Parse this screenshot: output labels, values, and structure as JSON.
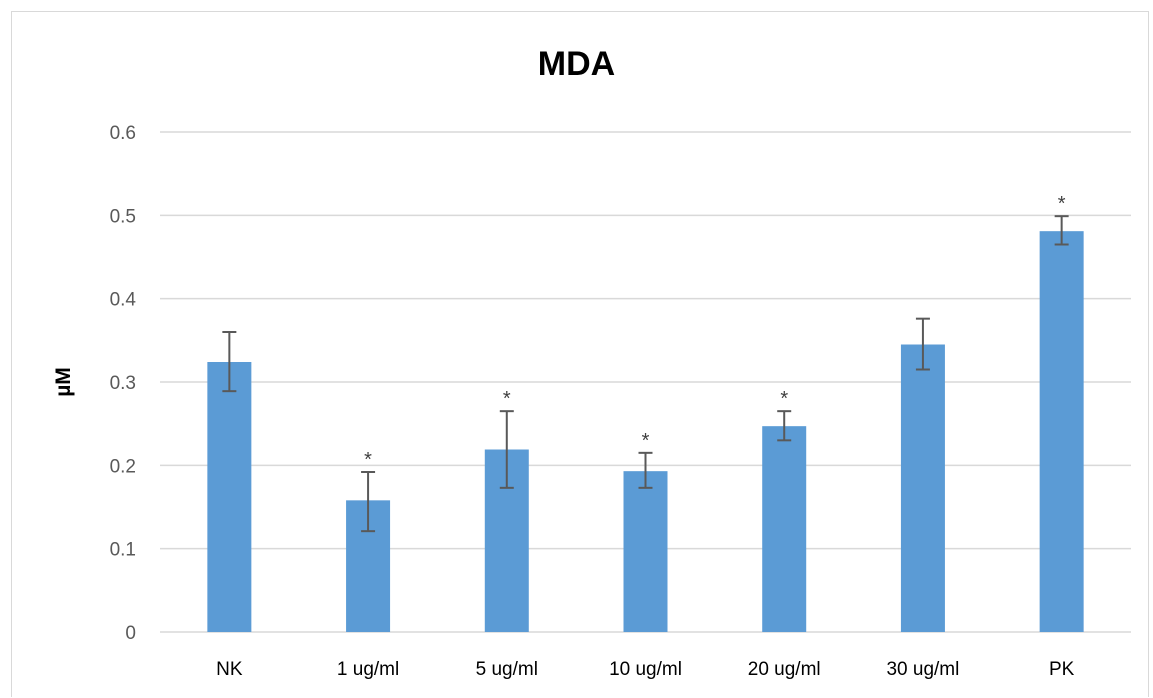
{
  "chart_data": {
    "type": "bar",
    "title": "MDA",
    "xlabel": "",
    "ylabel": "µM",
    "ylim": [
      0,
      0.6
    ],
    "yticks": [
      "0",
      "0.1",
      "0.2",
      "0.3",
      "0.4",
      "0.5",
      "0.6"
    ],
    "categories": [
      "NK",
      "1 ug/ml",
      "5 ug/ml",
      "10 ug/ml",
      "20 ug/ml",
      "30 ug/ml",
      "PK"
    ],
    "values": [
      0.324,
      0.158,
      0.219,
      0.193,
      0.247,
      0.345,
      0.481
    ],
    "error_low": [
      0.289,
      0.121,
      0.173,
      0.173,
      0.23,
      0.315,
      0.465
    ],
    "error_high": [
      0.36,
      0.192,
      0.265,
      0.215,
      0.265,
      0.376,
      0.499
    ],
    "significance": [
      "",
      "*",
      "*",
      "*",
      "*",
      "",
      "*"
    ],
    "grid": true,
    "legend": "none",
    "bar_color": "#5b9bd5",
    "error_color": "#595959",
    "grid_color": "#d9d9d9"
  }
}
